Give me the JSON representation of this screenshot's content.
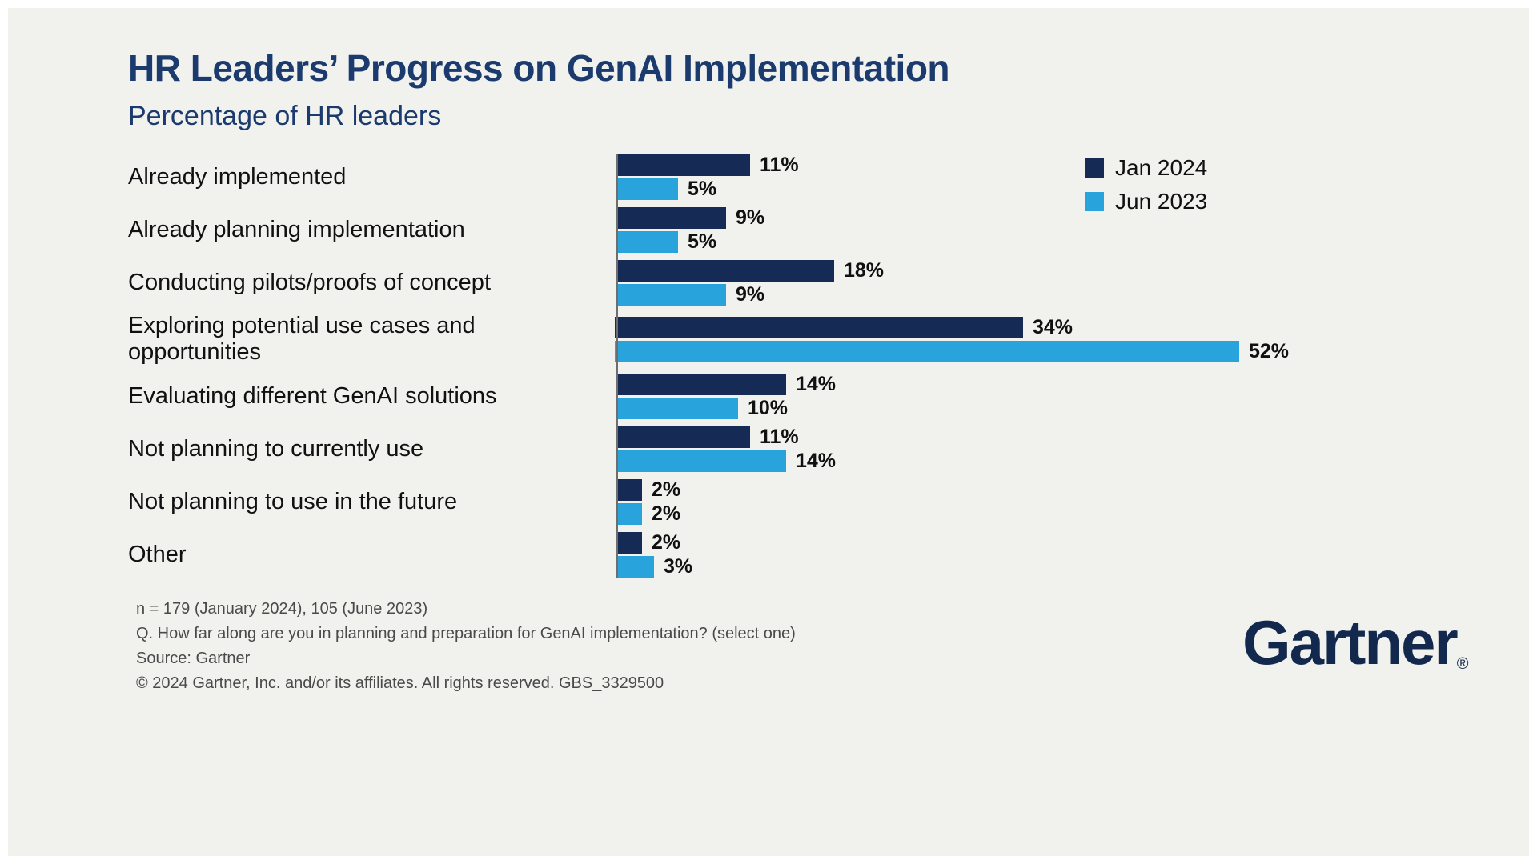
{
  "page": {
    "title": "HR Leaders’ Progress on GenAI Implementation",
    "subtitle": "Percentage of HR leaders"
  },
  "legend": [
    {
      "label": "Jan 2024",
      "color": "#152a54"
    },
    {
      "label": "Jun 2023",
      "color": "#29a3dc"
    }
  ],
  "chart_data": {
    "type": "bar",
    "orientation": "horizontal",
    "value_suffix": "%",
    "xlim": [
      0,
      55
    ],
    "grid": false,
    "legend_position": "top-right",
    "categories": [
      "Already implemented",
      "Already planning implementation",
      "Conducting pilots/proofs of concept",
      "Exploring potential use cases and opportunities",
      "Evaluating different GenAI solutions",
      "Not planning to currently use",
      "Not planning to use in the future",
      "Other"
    ],
    "series": [
      {
        "name": "Jan 2024",
        "color": "#152a54",
        "values": [
          11,
          9,
          18,
          34,
          14,
          11,
          2,
          2
        ]
      },
      {
        "name": "Jun 2023",
        "color": "#29a3dc",
        "values": [
          5,
          5,
          9,
          52,
          10,
          14,
          2,
          3
        ]
      }
    ]
  },
  "footnotes": [
    "n = 179 (January 2024), 105 (June 2023)",
    "Q. How far along are you in planning and preparation for GenAI implementation? (select one)",
    "Source: Gartner",
    "© 2024 Gartner, Inc. and/or its affiliates. All rights reserved. GBS_3329500"
  ],
  "branding": {
    "logo_text": "Gartner",
    "registered_mark": "®"
  }
}
